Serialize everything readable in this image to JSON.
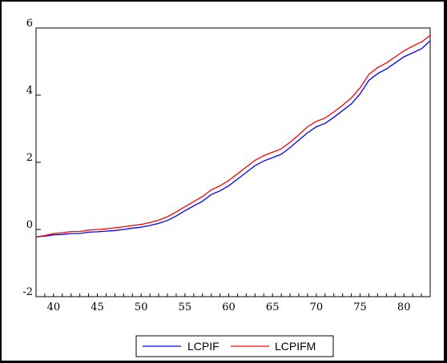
{
  "chart_data": {
    "type": "line",
    "title": "",
    "xlabel": "",
    "ylabel": "",
    "xlim": [
      38,
      83
    ],
    "ylim": [
      -2,
      6
    ],
    "xticks": [
      40,
      45,
      50,
      55,
      60,
      65,
      70,
      75,
      80
    ],
    "yticks": [
      -2,
      0,
      2,
      4,
      6
    ],
    "xtick_labels": [
      "40",
      "45",
      "50",
      "55",
      "60",
      "65",
      "70",
      "75",
      "80"
    ],
    "ytick_labels": [
      "-2",
      "0",
      "2",
      "4",
      "6"
    ],
    "grid": false,
    "legend_position": "bottom-center",
    "x": [
      38,
      39,
      40,
      41,
      42,
      43,
      44,
      45,
      46,
      47,
      48,
      49,
      50,
      51,
      52,
      53,
      54,
      55,
      56,
      57,
      58,
      59,
      60,
      61,
      62,
      63,
      64,
      65,
      66,
      67,
      68,
      69,
      70,
      71,
      72,
      73,
      74,
      75,
      76,
      77,
      78,
      79,
      80,
      81,
      82,
      83
    ],
    "series": [
      {
        "name": "LCPIF",
        "color": "#0000ff",
        "values": [
          -0.22,
          -0.2,
          -0.16,
          -0.15,
          -0.12,
          -0.12,
          -0.08,
          -0.07,
          -0.05,
          -0.03,
          0.0,
          0.04,
          0.07,
          0.12,
          0.18,
          0.27,
          0.4,
          0.56,
          0.7,
          0.84,
          1.04,
          1.15,
          1.3,
          1.5,
          1.7,
          1.9,
          2.04,
          2.14,
          2.24,
          2.44,
          2.66,
          2.88,
          3.06,
          3.16,
          3.34,
          3.54,
          3.74,
          4.04,
          4.44,
          4.64,
          4.78,
          4.96,
          5.14,
          5.26,
          5.38,
          5.62
        ]
      },
      {
        "name": "LCPIFM",
        "color": "#ff0000",
        "values": [
          -0.22,
          -0.18,
          -0.12,
          -0.1,
          -0.06,
          -0.06,
          -0.02,
          0.0,
          0.02,
          0.05,
          0.08,
          0.12,
          0.15,
          0.21,
          0.28,
          0.38,
          0.52,
          0.68,
          0.83,
          0.98,
          1.18,
          1.3,
          1.46,
          1.66,
          1.86,
          2.06,
          2.2,
          2.3,
          2.4,
          2.6,
          2.82,
          3.06,
          3.22,
          3.32,
          3.5,
          3.7,
          3.92,
          4.22,
          4.62,
          4.82,
          4.96,
          5.14,
          5.32,
          5.46,
          5.58,
          5.78
        ]
      }
    ]
  }
}
